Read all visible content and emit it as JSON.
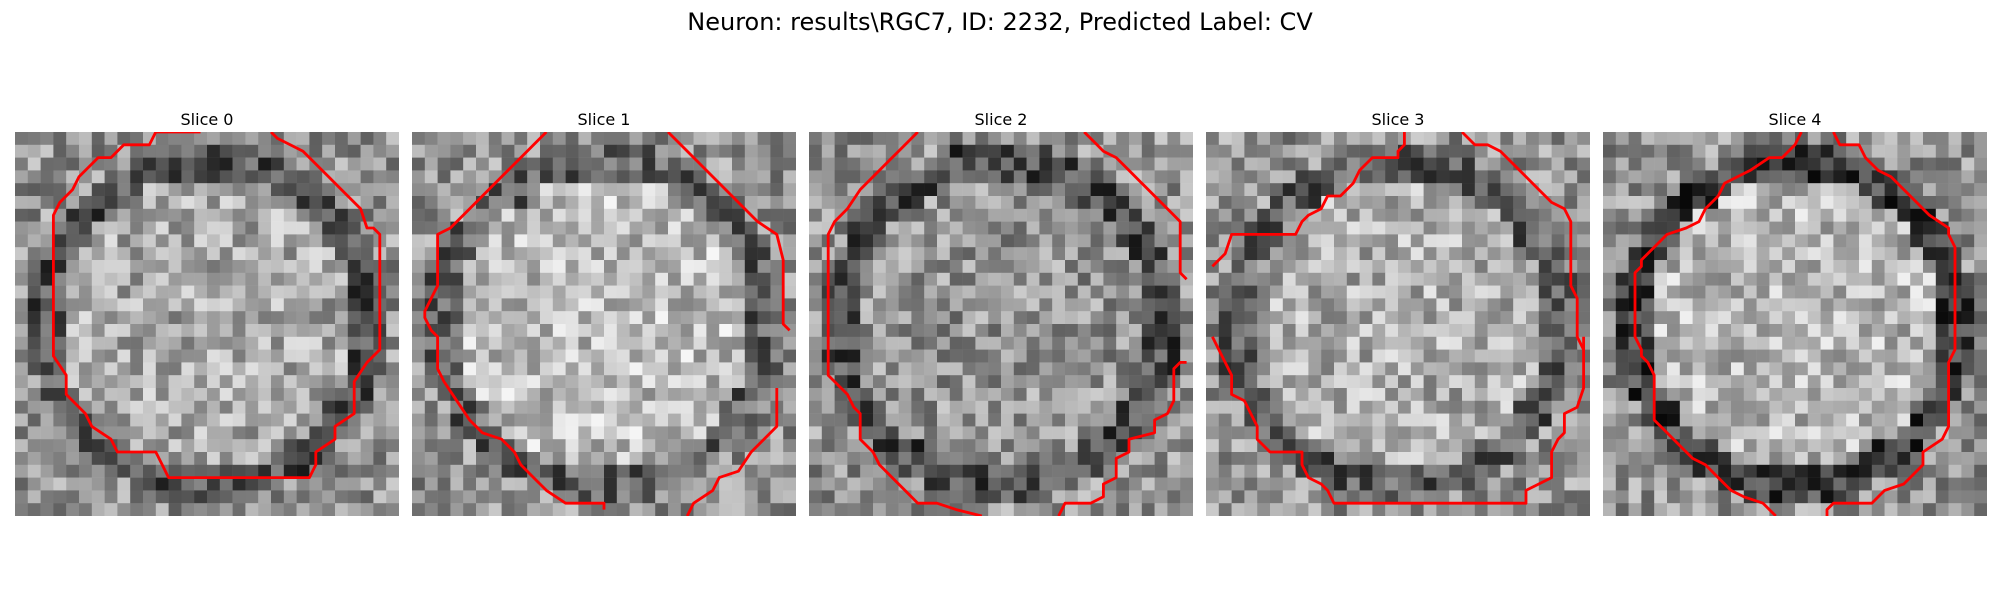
{
  "figure": {
    "title": "Neuron: results\\RGC7, ID: 2232, Predicted Label: CV"
  },
  "colors": {
    "contour": "#ff0000"
  },
  "panels": [
    {
      "title": "Slice 0",
      "seed": 11,
      "center_brightness": 0.66,
      "ring_darkness": 0.32
    },
    {
      "title": "Slice 1",
      "seed": 23,
      "center_brightness": 0.74,
      "ring_darkness": 0.38
    },
    {
      "title": "Slice 2",
      "seed": 37,
      "center_brightness": 0.58,
      "ring_darkness": 0.3
    },
    {
      "title": "Slice 3",
      "seed": 41,
      "center_brightness": 0.68,
      "ring_darkness": 0.36
    },
    {
      "title": "Slice 4",
      "seed": 59,
      "center_brightness": 0.72,
      "ring_darkness": 0.25
    }
  ]
}
